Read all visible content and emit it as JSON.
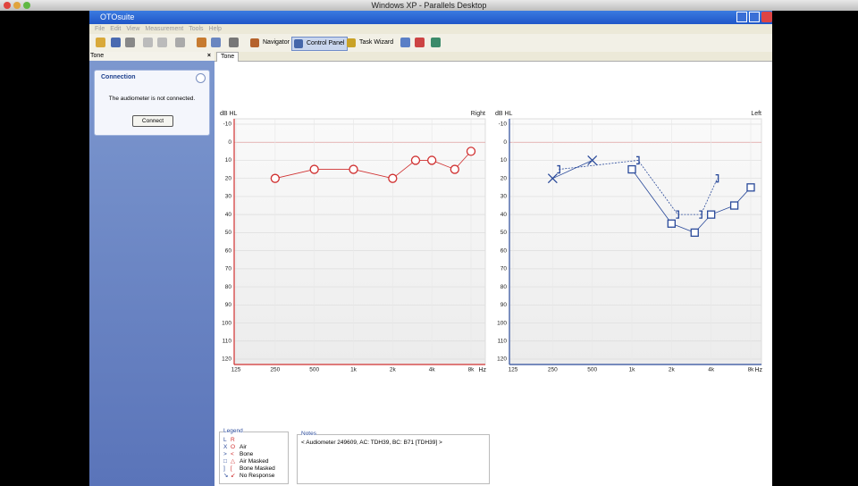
{
  "window_title": "Windows XP - Parallels Desktop",
  "app_title": "OTOsuite",
  "menu": {
    "items": [
      "File",
      "Edit",
      "View",
      "Measurement",
      "Tools",
      "Help"
    ]
  },
  "toolbar": {
    "items": [
      "Navigator",
      "Control Panel",
      "Task Wizard"
    ]
  },
  "side_panel": {
    "title": "Tone",
    "close": "×",
    "box_title": "Connection",
    "message": "The audiometer is not connected.",
    "button": "Connect"
  },
  "tab": "Tone",
  "charts": [
    {
      "ear": "Right",
      "y_label": "dB HL",
      "x_unit": "Hz",
      "color": "#d03030",
      "log_x": true,
      "grid": true,
      "xlim": [
        125,
        8000
      ],
      "ylim": [
        -10,
        120
      ],
      "yticks": [
        -10,
        0,
        10,
        20,
        30,
        40,
        50,
        60,
        70,
        80,
        90,
        100,
        110,
        120
      ],
      "xticks": [
        125,
        250,
        500,
        {
          "value": 1000,
          "label": "1k"
        },
        {
          "value": 2000,
          "label": "2k"
        },
        {
          "value": 4000,
          "label": "4k"
        },
        {
          "value": 8000,
          "label": "8k"
        }
      ],
      "series": [
        {
          "marker": "circle",
          "line": "solid",
          "x": [
            250,
            500,
            1000,
            2000,
            3000,
            4000,
            6000,
            8000
          ],
          "values": [
            20,
            15,
            15,
            20,
            10,
            10,
            15,
            5
          ]
        }
      ]
    },
    {
      "ear": "Left",
      "y_label": "dB HL",
      "x_unit": "Hz",
      "color": "#2a4a9a",
      "log_x": true,
      "grid": true,
      "xlim": [
        125,
        8000
      ],
      "ylim": [
        -10,
        120
      ],
      "yticks": [
        -10,
        0,
        10,
        20,
        30,
        40,
        50,
        60,
        70,
        80,
        90,
        100,
        110,
        120
      ],
      "xticks": [
        125,
        250,
        500,
        {
          "value": 1000,
          "label": "1k"
        },
        {
          "value": 2000,
          "label": "2k"
        },
        {
          "value": 4000,
          "label": "4k"
        },
        {
          "value": 8000,
          "label": "8k"
        }
      ],
      "series": [
        {
          "marker": "x",
          "line": "solid",
          "x": [
            250,
            500
          ],
          "values": [
            20,
            10
          ]
        },
        {
          "marker": "square",
          "line": "solid",
          "x": [
            1000,
            2000,
            3000,
            4000,
            6000,
            8000
          ],
          "values": [
            15,
            45,
            50,
            40,
            35,
            25
          ]
        },
        {
          "marker": "bracket",
          "line": "dashed",
          "x": [
            250,
            1000,
            2000,
            3000,
            4000
          ],
          "values": [
            15,
            10,
            40,
            40,
            20
          ]
        }
      ]
    }
  ],
  "legend": {
    "title": "Legend",
    "left": "L",
    "right": "R",
    "items": [
      {
        "l": "X",
        "r": "O",
        "label": "Air"
      },
      {
        "l": ">",
        "r": "<",
        "label": "Bone"
      },
      {
        "l": "□",
        "r": "△",
        "label": "Air Masked"
      },
      {
        "l": "]",
        "r": "[",
        "label": "Bone Masked"
      },
      {
        "l": "↘",
        "r": "↙",
        "label": "No Response"
      }
    ]
  },
  "notes": {
    "title": "Notes",
    "text": "< Audiometer 249609, AC: TDH39, BC: B71 [TDH39] >"
  }
}
